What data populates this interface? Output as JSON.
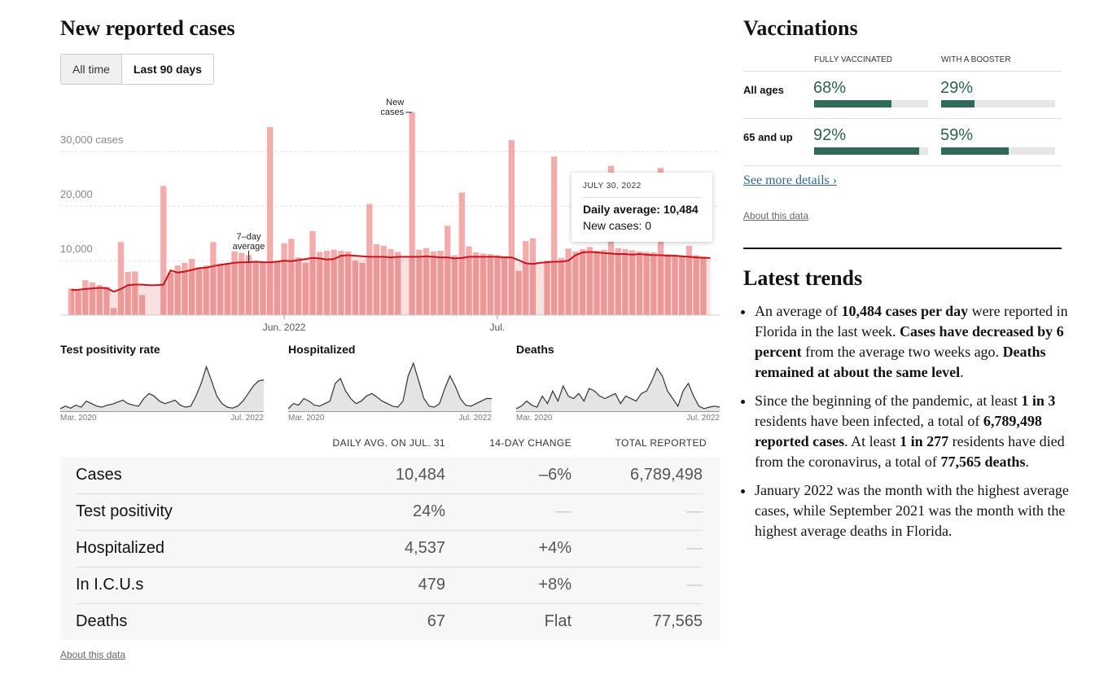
{
  "cases": {
    "title": "New reported cases",
    "tabs": [
      {
        "label": "All time",
        "active": false
      },
      {
        "label": "Last 90 days",
        "active": true
      }
    ],
    "chart_data": {
      "type": "bar",
      "categories": [
        null,
        null,
        null,
        null,
        null,
        null,
        null,
        null,
        null,
        null,
        null,
        null,
        null,
        null,
        null,
        null,
        null,
        null,
        null,
        null,
        null,
        null,
        null,
        null,
        null,
        null,
        null,
        null,
        null,
        null,
        "Jun. 2022",
        null,
        null,
        null,
        null,
        null,
        null,
        null,
        null,
        null,
        null,
        null,
        null,
        null,
        null,
        null,
        null,
        null,
        null,
        null,
        null,
        null,
        null,
        null,
        null,
        null,
        null,
        null,
        null,
        null,
        "Jul.",
        null,
        null,
        null,
        null,
        null,
        null,
        null,
        null,
        null,
        null,
        null,
        null,
        null,
        null,
        null,
        null,
        null,
        null,
        null,
        null,
        null,
        null,
        null,
        null,
        null,
        null,
        null,
        null,
        null,
        null
      ],
      "series": [
        {
          "name": "New cases",
          "color": "#f4abab",
          "values": [
            4900,
            4500,
            6400,
            6000,
            5500,
            5200,
            1300,
            13400,
            7900,
            8000,
            3700,
            0,
            0,
            23700,
            7800,
            9100,
            9600,
            10300,
            8800,
            9100,
            13400,
            9500,
            9600,
            11700,
            11400,
            11000,
            9800,
            9700,
            34500,
            9800,
            13200,
            14000,
            10600,
            9600,
            15400,
            11600,
            11800,
            12000,
            11800,
            11700,
            10000,
            9600,
            20400,
            13000,
            12700,
            12100,
            11600,
            0,
            37200,
            12000,
            12300,
            11700,
            11800,
            16400,
            11000,
            22500,
            12600,
            11500,
            11300,
            11200,
            11000,
            10800,
            32100,
            8100,
            13600,
            14100,
            0,
            10000,
            29100,
            10500,
            12200,
            11700,
            12100,
            12500,
            11800,
            12000,
            27400,
            12300,
            12100,
            11900,
            11700,
            11600,
            11500,
            27000,
            11200,
            11100,
            10900,
            12700,
            11000,
            10800,
            0
          ]
        },
        {
          "name": "7–day average",
          "type": "line",
          "color": "#c4161c",
          "values": [
            4600,
            4650,
            4800,
            4900,
            5000,
            4950,
            4300,
            4800,
            5500,
            5600,
            5600,
            5500,
            5500,
            5600,
            8200,
            7800,
            8000,
            8300,
            8600,
            8700,
            9000,
            9200,
            9400,
            9600,
            9700,
            9700,
            9800,
            9700,
            9700,
            9800,
            10000,
            9900,
            10100,
            10300,
            10500,
            10400,
            10200,
            10300,
            10900,
            11000,
            10900,
            10800,
            10700,
            10700,
            10700,
            10600,
            10700,
            10700,
            10700,
            10700,
            10800,
            10700,
            10600,
            10600,
            10400,
            10500,
            10700,
            10700,
            10700,
            10700,
            10700,
            10600,
            10600,
            10100,
            9500,
            9400,
            9600,
            9700,
            9800,
            9800,
            10000,
            11000,
            11500,
            11600,
            11500,
            11400,
            11300,
            11200,
            11200,
            11100,
            11200,
            11100,
            11000,
            11000,
            10900,
            10900,
            10800,
            10700,
            10600,
            10484,
            10500
          ]
        }
      ],
      "ylim": [
        0,
        39000
      ],
      "yticks": [
        {
          "value": 10000,
          "label": "10,000"
        },
        {
          "value": 20000,
          "label": "20,000"
        },
        {
          "value": 30000,
          "label": "30,000 cases"
        }
      ],
      "grid": true,
      "tooltip": {
        "title": "JULY 30, 2022",
        "lines": [
          {
            "text": "Daily average: 10,484",
            "bold": true
          },
          {
            "text": "New cases: 0",
            "bold": false
          }
        ]
      }
    },
    "sparklines": {
      "chart_data": [
        {
          "type": "line",
          "title": "Test positivity rate",
          "x_labels": [
            "Mar. 2020",
            "Jul. 2022"
          ],
          "ylim": [
            0,
            100
          ],
          "color": "#333333",
          "values": [
            5,
            10,
            6,
            12,
            8,
            20,
            15,
            10,
            8,
            12,
            14,
            18,
            22,
            15,
            12,
            10,
            25,
            35,
            30,
            20,
            15,
            18,
            22,
            12,
            8,
            10,
            30,
            55,
            88,
            60,
            30,
            15,
            8,
            6,
            10,
            20,
            35,
            50,
            60,
            62
          ]
        },
        {
          "type": "line",
          "title": "Hospitalized",
          "x_labels": [
            "Mar. 2020",
            "Jul. 2022"
          ],
          "ylim": [
            0,
            100
          ],
          "color": "#333333",
          "values": [
            5,
            15,
            12,
            25,
            20,
            12,
            10,
            15,
            20,
            55,
            65,
            40,
            25,
            15,
            20,
            30,
            35,
            28,
            20,
            15,
            10,
            8,
            20,
            70,
            95,
            60,
            25,
            10,
            8,
            15,
            45,
            70,
            50,
            25,
            12,
            10,
            15,
            20,
            25,
            25
          ]
        },
        {
          "type": "line",
          "title": "Deaths",
          "x_labels": [
            "Mar. 2020",
            "Jul. 2022"
          ],
          "ylim": [
            0,
            100
          ],
          "color": "#333333",
          "values": [
            5,
            10,
            20,
            12,
            8,
            30,
            15,
            40,
            20,
            50,
            30,
            25,
            35,
            20,
            45,
            40,
            30,
            25,
            30,
            35,
            15,
            30,
            25,
            20,
            35,
            40,
            60,
            85,
            70,
            40,
            25,
            10,
            40,
            55,
            30,
            10,
            5,
            8,
            10,
            8
          ]
        }
      ]
    },
    "summary": {
      "header": [
        "DAILY AVG. ON JUL. 31",
        "14-DAY CHANGE",
        "TOTAL REPORTED"
      ],
      "rows": [
        [
          "Cases",
          "10,484",
          "–6%",
          "6,789,498"
        ],
        [
          "Test positivity",
          "24%",
          "—",
          "—"
        ],
        [
          "Hospitalized",
          "4,537",
          "+4%",
          "—"
        ],
        [
          "In I.C.U.s",
          "479",
          "+8%",
          "—"
        ],
        [
          "Deaths",
          "67",
          "Flat",
          "77,565"
        ]
      ]
    },
    "about": "About this data"
  },
  "vaccinations": {
    "title": "Vaccinations",
    "columns": [
      "FULLY VACCINATED",
      "WITH A BOOSTER"
    ],
    "xlim": [
      0,
      100
    ],
    "bar_color": "#2e6a57",
    "rows": [
      {
        "label": "All ages",
        "cells": [
          {
            "value": 68,
            "label": "68%"
          },
          {
            "value": 29,
            "label": "29%"
          }
        ]
      },
      {
        "label": "65 and up",
        "cells": [
          {
            "value": 92,
            "label": "92%"
          },
          {
            "value": 59,
            "label": "59%"
          }
        ]
      }
    ],
    "link": "See more details ›",
    "about": "About this data"
  },
  "trends": {
    "title": "Latest trends",
    "items": [
      [
        {
          "text": "An average of ",
          "bold": false
        },
        {
          "text": "10,484 cases per day",
          "bold": true
        },
        {
          "text": " were reported in Florida in the last week. ",
          "bold": false
        },
        {
          "text": "Cases have decreased by 6 percent",
          "bold": true
        },
        {
          "text": " from the average two weeks ago. ",
          "bold": false
        },
        {
          "text": "Deaths remained at about the same level",
          "bold": true
        },
        {
          "text": ".",
          "bold": false
        }
      ],
      [
        {
          "text": "Since the beginning of the pandemic, at least ",
          "bold": false
        },
        {
          "text": "1 in 3",
          "bold": true
        },
        {
          "text": " residents have been infected, a total of ",
          "bold": false
        },
        {
          "text": "6,789,498 reported cases",
          "bold": true
        },
        {
          "text": ". At least ",
          "bold": false
        },
        {
          "text": "1 in 277",
          "bold": true
        },
        {
          "text": " residents have died from the coronavirus, a total of ",
          "bold": false
        },
        {
          "text": "77,565 deaths",
          "bold": true
        },
        {
          "text": ".",
          "bold": false
        }
      ],
      [
        {
          "text": "January 2022 was the month with the highest average cases, while September 2021 was the month with the highest average deaths in Florida.",
          "bold": false
        }
      ]
    ]
  }
}
